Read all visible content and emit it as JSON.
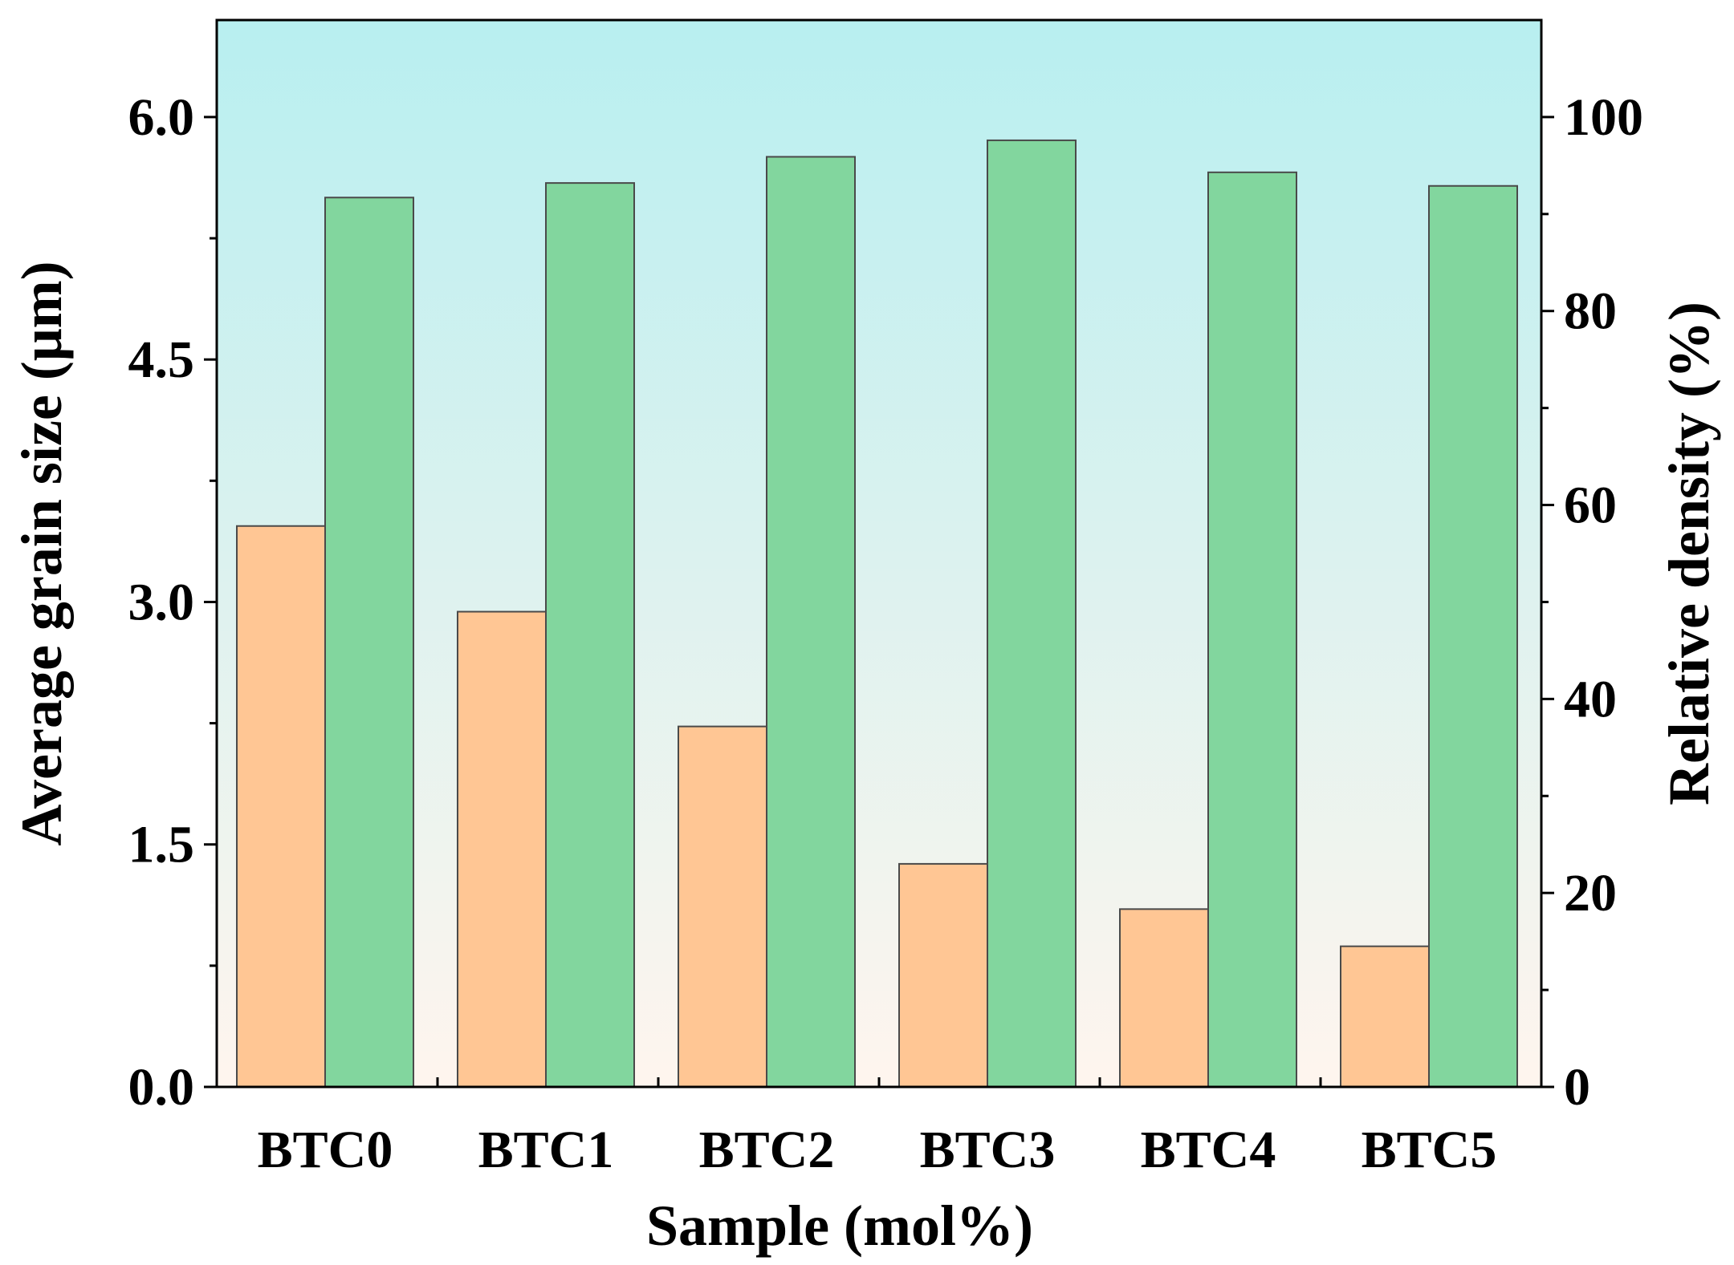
{
  "chart_data": {
    "type": "bar",
    "xlabel": "Sample (mol%)",
    "ylabel_left": "Average grain size (μm)",
    "ylabel_right": "Relative density (%)",
    "categories": [
      "BTC0",
      "BTC1",
      "BTC2",
      "BTC3",
      "BTC4",
      "BTC5"
    ],
    "ylim_left": [
      0,
      6.6
    ],
    "ylim_right": [
      0,
      110
    ],
    "yticks_left": [
      "0.0",
      "1.5",
      "3.0",
      "4.5",
      "6.0"
    ],
    "yticks_left_values": [
      0,
      1.5,
      3,
      4.5,
      6
    ],
    "yticks_right": [
      "0",
      "20",
      "40",
      "60",
      "80",
      "100"
    ],
    "yticks_right_values": [
      0,
      20,
      40,
      60,
      80,
      100
    ],
    "series": [
      {
        "axis": "left",
        "color": "#ffc694",
        "values": [
          3.47,
          2.94,
          2.23,
          1.38,
          1.1,
          0.87
        ]
      },
      {
        "axis": "right",
        "color": "#82d69e",
        "values": [
          91.7,
          93.2,
          95.9,
          97.6,
          94.3,
          92.9
        ]
      }
    ],
    "background_gradient": [
      "#b8eff0",
      "#fff5ee"
    ],
    "grid": false,
    "legend": "none"
  }
}
